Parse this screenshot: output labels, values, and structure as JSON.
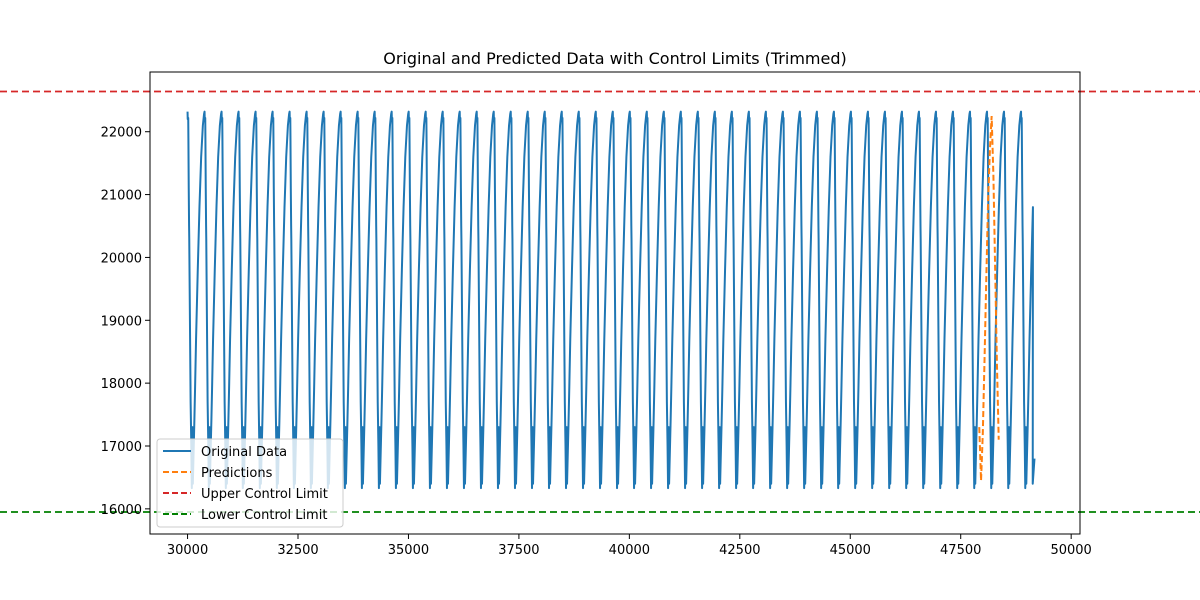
{
  "chart_data": {
    "type": "line",
    "title": "Original and Predicted Data with Control Limits (Trimmed)",
    "xlabel": "",
    "ylabel": "",
    "xlim": [
      29150,
      50200
    ],
    "ylim": [
      15600,
      22950
    ],
    "xticks": [
      30000,
      32500,
      35000,
      37500,
      40000,
      42500,
      45000,
      47500,
      50000
    ],
    "yticks": [
      16000,
      17000,
      18000,
      19000,
      20000,
      21000,
      22000
    ],
    "grid": false,
    "legend_position": "lower-left",
    "series": [
      {
        "name": "Original Data",
        "style": "solid",
        "color": "#1f77b4",
        "x_start": 30000,
        "x_end": 49170,
        "period": 385,
        "cycles": 50,
        "peak": 22320,
        "trough": 16330,
        "shoulders": [
          21900,
          21100,
          20300
        ]
      },
      {
        "name": "Predictions",
        "style": "dashed",
        "color": "#ff7f0e",
        "x": [
          47920,
          47960,
          48000,
          48040,
          48080,
          48120,
          48160,
          48200,
          48240,
          48280,
          48320,
          48360
        ],
        "y": [
          17300,
          16450,
          17200,
          18400,
          19700,
          20900,
          21700,
          22250,
          21300,
          19800,
          18300,
          17100
        ]
      },
      {
        "name": "Upper Control Limit",
        "style": "dashed",
        "color": "#d62728",
        "value": 22640
      },
      {
        "name": "Lower Control Limit",
        "style": "dashed",
        "color": "#008000",
        "value": 15950
      }
    ]
  }
}
